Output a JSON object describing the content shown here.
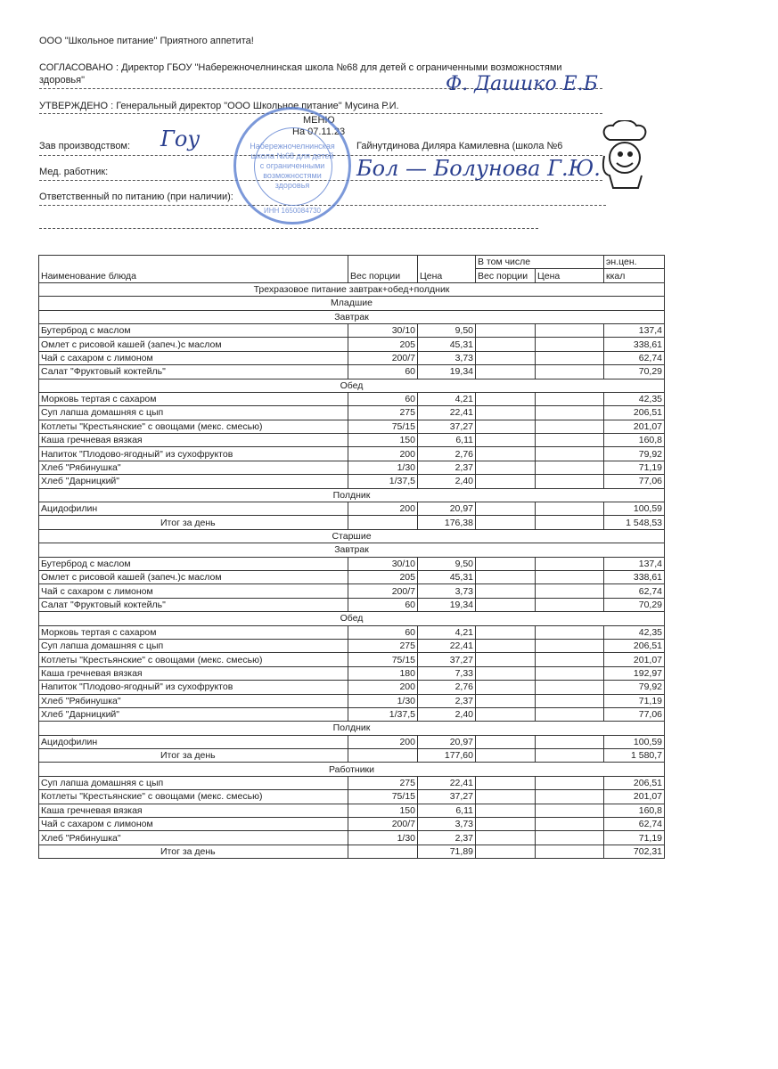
{
  "header": {
    "company": "ООО \"Школьное питание\" Приятного аппетита!",
    "agreed_line1": "СОГЛАСОВАНО : Директор ГБОУ \"Набережночелнинская школа №68 для детей с ограниченными возможностями",
    "agreed_line2": "здоровья\"",
    "approved": "УТВЕРЖДЕНО : Генеральный директор \"ООО Школьное питание\" Мусина Р.И.",
    "menu_title": "МЕНЮ",
    "date": "На 07.11.23",
    "production_label": "Зав производством:",
    "production_name": "Гайнутдинова Диляра Камилевна (школа №6",
    "medic_label": "Мед. работник:",
    "responsible_label": "Ответственный по питанию (при наличии):"
  },
  "stamp": {
    "text": "Набережночелнинская школа №68 для детей с ограниченными возможностями здоровья",
    "inn": "ИНН 1650084730"
  },
  "signatures": {
    "director": "Ф. Дашико Е.Б",
    "production": "Гоу",
    "medic": "Бол — Болунова Г.Ю."
  },
  "table": {
    "headers": {
      "name": "Наименование блюда",
      "weight": "Вес порции",
      "price": "Цена",
      "including": "В том числе",
      "inc_weight": "Вес порции",
      "inc_price": "Цена",
      "energy1": "эн.цен.",
      "energy2": "ккал"
    },
    "rows": [
      {
        "type": "section",
        "text": "Трехразовое питание завтрак+обед+полдник"
      },
      {
        "type": "section",
        "text": "Младшие"
      },
      {
        "type": "section",
        "text": "Завтрак"
      },
      {
        "type": "item",
        "name": "Бутерброд с маслом",
        "weight": "30/10",
        "price": "9,50",
        "kcal": "137,4"
      },
      {
        "type": "item",
        "name": "Омлет с рисовой кашей (запеч.)с маслом",
        "weight": "205",
        "price": "45,31",
        "kcal": "338,61"
      },
      {
        "type": "item",
        "name": "Чай с сахаром с лимоном",
        "weight": "200/7",
        "price": "3,73",
        "kcal": "62,74"
      },
      {
        "type": "item",
        "name": "Салат \"Фруктовый коктейль\"",
        "weight": "60",
        "price": "19,34",
        "kcal": "70,29"
      },
      {
        "type": "section",
        "text": "Обед"
      },
      {
        "type": "item",
        "name": "Морковь тертая с сахаром",
        "weight": "60",
        "price": "4,21",
        "kcal": "42,35"
      },
      {
        "type": "item",
        "name": "Суп лапша домашняя с цып",
        "weight": "275",
        "price": "22,41",
        "kcal": "206,51"
      },
      {
        "type": "item",
        "name": "Котлеты \"Крестьянские\" с овощами (мекс. смесью)",
        "weight": "75/15",
        "price": "37,27",
        "kcal": "201,07"
      },
      {
        "type": "item",
        "name": "Каша гречневая вязкая",
        "weight": "150",
        "price": "6,11",
        "kcal": "160,8"
      },
      {
        "type": "item",
        "name": "Напиток \"Плодово-ягодный\" из сухофруктов",
        "weight": "200",
        "price": "2,76",
        "kcal": "79,92"
      },
      {
        "type": "item",
        "name": "Хлеб \"Рябинушка\"",
        "weight": "1/30",
        "price": "2,37",
        "kcal": "71,19"
      },
      {
        "type": "item",
        "name": "Хлеб \"Дарницкий\"",
        "weight": "1/37,5",
        "price": "2,40",
        "kcal": "77,06"
      },
      {
        "type": "section",
        "text": "Полдник"
      },
      {
        "type": "item",
        "name": "Ацидофилин",
        "weight": "200",
        "price": "20,97",
        "kcal": "100,59"
      },
      {
        "type": "total",
        "name": "Итог за день",
        "price": "176,38",
        "kcal": "1 548,53"
      },
      {
        "type": "section",
        "text": "Старшие"
      },
      {
        "type": "section",
        "text": "Завтрак"
      },
      {
        "type": "item",
        "name": "Бутерброд с маслом",
        "weight": "30/10",
        "price": "9,50",
        "kcal": "137,4"
      },
      {
        "type": "item",
        "name": "Омлет с рисовой кашей (запеч.)с маслом",
        "weight": "205",
        "price": "45,31",
        "kcal": "338,61"
      },
      {
        "type": "item",
        "name": "Чай с сахаром с лимоном",
        "weight": "200/7",
        "price": "3,73",
        "kcal": "62,74"
      },
      {
        "type": "item",
        "name": "Салат \"Фруктовый коктейль\"",
        "weight": "60",
        "price": "19,34",
        "kcal": "70,29"
      },
      {
        "type": "section",
        "text": "Обед"
      },
      {
        "type": "item",
        "name": "Морковь тертая с сахаром",
        "weight": "60",
        "price": "4,21",
        "kcal": "42,35"
      },
      {
        "type": "item",
        "name": "Суп лапша домашняя с цып",
        "weight": "275",
        "price": "22,41",
        "kcal": "206,51"
      },
      {
        "type": "item",
        "name": "Котлеты \"Крестьянские\" с овощами (мекс. смесью)",
        "weight": "75/15",
        "price": "37,27",
        "kcal": "201,07"
      },
      {
        "type": "item",
        "name": "Каша гречневая вязкая",
        "weight": "180",
        "price": "7,33",
        "kcal": "192,97"
      },
      {
        "type": "item",
        "name": "Напиток \"Плодово-ягодный\" из сухофруктов",
        "weight": "200",
        "price": "2,76",
        "kcal": "79,92"
      },
      {
        "type": "item",
        "name": "Хлеб \"Рябинушка\"",
        "weight": "1/30",
        "price": "2,37",
        "kcal": "71,19"
      },
      {
        "type": "item",
        "name": "Хлеб \"Дарницкий\"",
        "weight": "1/37,5",
        "price": "2,40",
        "kcal": "77,06"
      },
      {
        "type": "section",
        "text": "Полдник"
      },
      {
        "type": "item",
        "name": "Ацидофилин",
        "weight": "200",
        "price": "20,97",
        "kcal": "100,59"
      },
      {
        "type": "total",
        "name": "Итог за день",
        "price": "177,60",
        "kcal": "1 580,7"
      },
      {
        "type": "section",
        "text": "Работники"
      },
      {
        "type": "item",
        "name": "Суп лапша домашняя с цып",
        "weight": "275",
        "price": "22,41",
        "kcal": "206,51"
      },
      {
        "type": "item",
        "name": "Котлеты \"Крестьянские\" с овощами (мекс. смесью)",
        "weight": "75/15",
        "price": "37,27",
        "kcal": "201,07"
      },
      {
        "type": "item",
        "name": "Каша гречневая вязкая",
        "weight": "150",
        "price": "6,11",
        "kcal": "160,8"
      },
      {
        "type": "item",
        "name": "Чай с сахаром с лимоном",
        "weight": "200/7",
        "price": "3,73",
        "kcal": "62,74"
      },
      {
        "type": "item",
        "name": "Хлеб \"Рябинушка\"",
        "weight": "1/30",
        "price": "2,37",
        "kcal": "71,19"
      },
      {
        "type": "total",
        "name": "Итог за день",
        "price": "71,89",
        "kcal": "702,31"
      }
    ]
  }
}
